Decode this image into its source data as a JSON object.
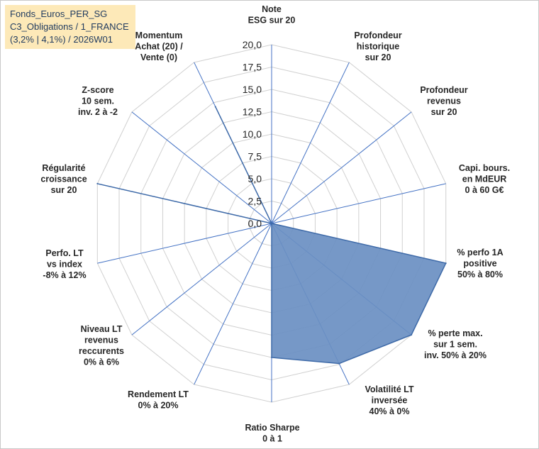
{
  "title_lines": [
    "Fonds_Euros_PER_SG",
    "C3_Obligations / 1_FRANCE",
    "(3,2% | 4,1%) / 2026W01"
  ],
  "colors": {
    "fill": "#6a8fc2",
    "stroke": "#3e6aa8",
    "spokes": "#4472c4",
    "grid": "#d0d0d0",
    "title_bg": "#fde9b8"
  },
  "chart_data": {
    "type": "radar",
    "rlim": [
      0,
      20
    ],
    "ticks": [
      "0,0",
      "2,5",
      "5,0",
      "7,5",
      "10,0",
      "12,5",
      "15,0",
      "17,5",
      "20,0"
    ],
    "tick_values": [
      0,
      2.5,
      5,
      7.5,
      10,
      12.5,
      15,
      17.5,
      20
    ],
    "grid": true,
    "categories": [
      [
        "Note",
        "ESG sur 20"
      ],
      [
        "Profondeur",
        "historique",
        "sur 20"
      ],
      [
        "Profondeur",
        "revenus",
        "sur 20"
      ],
      [
        "Capi. bours.",
        "en MdEUR",
        "0 à 60 G€"
      ],
      [
        "% perfo 1A",
        "positive",
        "50% à 80%"
      ],
      [
        "% perte max.",
        "sur 1 sem.",
        "inv. 50% à 20%"
      ],
      [
        "Volatilité LT",
        "inversée",
        "40% à 0%"
      ],
      [
        "Ratio Sharpe",
        "0 à 1"
      ],
      [
        "Rendement LT",
        "0% à 20%"
      ],
      [
        "Niveau LT",
        "revenus",
        "reccurents",
        "0% à 6%"
      ],
      [
        "Perfo. LT",
        "vs index",
        "-8% à 12%"
      ],
      [
        "Régularité",
        "croissance",
        "sur 20"
      ],
      [
        "Z-score",
        "10 sem.",
        "inv. 2 à -2"
      ],
      [
        "Momentum",
        "Achat (20) /",
        "Vente (0)"
      ]
    ],
    "values": [
      0,
      0,
      0,
      0,
      20,
      20,
      17.4,
      15,
      0,
      0,
      0,
      20,
      0,
      14.5
    ]
  }
}
